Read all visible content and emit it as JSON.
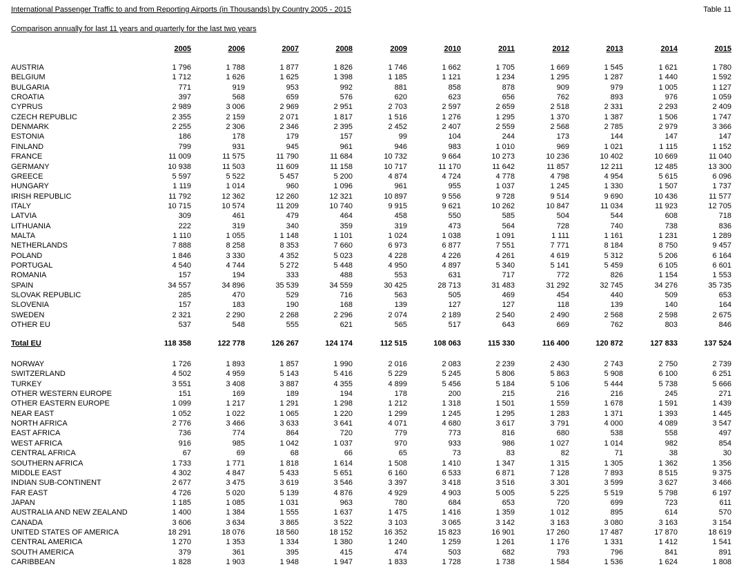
{
  "header": {
    "title": "International Passenger Traffic to and from Reporting Airports (in Thousands) by Country 2005 - 2015",
    "table_id": "Table 11",
    "subtitle": "Comparison annually for last 11 years and quarterly for the last two years"
  },
  "years": [
    "2005",
    "2006",
    "2007",
    "2008",
    "2009",
    "2010",
    "2011",
    "2012",
    "2013",
    "2014",
    "2015"
  ],
  "eu_rows": [
    {
      "name": "AUSTRIA",
      "values": [
        "1 796",
        "1 788",
        "1 877",
        "1 826",
        "1 746",
        "1 662",
        "1 705",
        "1 669",
        "1 545",
        "1 621",
        "1 780"
      ]
    },
    {
      "name": "BELGIUM",
      "values": [
        "1 712",
        "1 626",
        "1 625",
        "1 398",
        "1 185",
        "1 121",
        "1 234",
        "1 295",
        "1 287",
        "1 440",
        "1 592"
      ]
    },
    {
      "name": "BULGARIA",
      "values": [
        "771",
        "919",
        "953",
        "992",
        "881",
        "858",
        "878",
        "909",
        "979",
        "1 005",
        "1 127"
      ]
    },
    {
      "name": "CROATIA",
      "values": [
        "397",
        "568",
        "659",
        "576",
        "620",
        "623",
        "656",
        "762",
        "893",
        "976",
        "1 059"
      ]
    },
    {
      "name": "CYPRUS",
      "values": [
        "2 989",
        "3 006",
        "2 969",
        "2 951",
        "2 703",
        "2 597",
        "2 659",
        "2 518",
        "2 331",
        "2 293",
        "2 409"
      ]
    },
    {
      "name": "CZECH REPUBLIC",
      "values": [
        "2 355",
        "2 159",
        "2 071",
        "1 817",
        "1 516",
        "1 276",
        "1 295",
        "1 370",
        "1 387",
        "1 506",
        "1 747"
      ]
    },
    {
      "name": "DENMARK",
      "values": [
        "2 255",
        "2 306",
        "2 346",
        "2 395",
        "2 452",
        "2 407",
        "2 559",
        "2 568",
        "2 785",
        "2 979",
        "3 366"
      ]
    },
    {
      "name": "ESTONIA",
      "values": [
        "186",
        "178",
        "179",
        "157",
        "99",
        "104",
        "244",
        "173",
        "144",
        "147",
        "147"
      ]
    },
    {
      "name": "FINLAND",
      "values": [
        "799",
        "931",
        "945",
        "961",
        "946",
        "983",
        "1 010",
        "969",
        "1 021",
        "1 115",
        "1 152"
      ]
    },
    {
      "name": "FRANCE",
      "values": [
        "11 009",
        "11 575",
        "11 790",
        "11 684",
        "10 732",
        "9 664",
        "10 273",
        "10 236",
        "10 402",
        "10 669",
        "11 040"
      ]
    },
    {
      "name": "GERMANY",
      "values": [
        "10 938",
        "11 503",
        "11 609",
        "11 158",
        "10 717",
        "11 170",
        "11 642",
        "11 857",
        "12 211",
        "12 485",
        "13 300"
      ]
    },
    {
      "name": "GREECE",
      "values": [
        "5 597",
        "5 522",
        "5 457",
        "5 200",
        "4 874",
        "4 724",
        "4 778",
        "4 798",
        "4 954",
        "5 615",
        "6 096"
      ]
    },
    {
      "name": "HUNGARY",
      "values": [
        "1 119",
        "1 014",
        "960",
        "1 096",
        "961",
        "955",
        "1 037",
        "1 245",
        "1 330",
        "1 507",
        "1 737"
      ]
    },
    {
      "name": "IRISH REPUBLIC",
      "values": [
        "11 792",
        "12 362",
        "12 260",
        "12 321",
        "10 897",
        "9 556",
        "9 728",
        "9 514",
        "9 690",
        "10 436",
        "11 577"
      ]
    },
    {
      "name": "ITALY",
      "values": [
        "10 715",
        "10 574",
        "11 209",
        "10 740",
        "9 915",
        "9 621",
        "10 262",
        "10 847",
        "11 034",
        "11 923",
        "12 705"
      ]
    },
    {
      "name": "LATVIA",
      "values": [
        "309",
        "461",
        "479",
        "464",
        "458",
        "550",
        "585",
        "504",
        "544",
        "608",
        "718"
      ]
    },
    {
      "name": "LITHUANIA",
      "values": [
        "222",
        "319",
        "340",
        "359",
        "319",
        "473",
        "564",
        "728",
        "740",
        "738",
        "836"
      ]
    },
    {
      "name": "MALTA",
      "values": [
        "1 110",
        "1 055",
        "1 148",
        "1 101",
        "1 024",
        "1 038",
        "1 091",
        "1 111",
        "1 161",
        "1 231",
        "1 289"
      ]
    },
    {
      "name": "NETHERLANDS",
      "values": [
        "7 888",
        "8 258",
        "8 353",
        "7 660",
        "6 973",
        "6 877",
        "7 551",
        "7 771",
        "8 184",
        "8 750",
        "9 457"
      ]
    },
    {
      "name": "POLAND",
      "values": [
        "1 846",
        "3 330",
        "4 352",
        "5 023",
        "4 228",
        "4 226",
        "4 261",
        "4 619",
        "5 312",
        "5 206",
        "6 164"
      ]
    },
    {
      "name": "PORTUGAL",
      "values": [
        "4 540",
        "4 744",
        "5 272",
        "5 448",
        "4 950",
        "4 897",
        "5 340",
        "5 141",
        "5 459",
        "6 105",
        "6 601"
      ]
    },
    {
      "name": "ROMANIA",
      "values": [
        "157",
        "194",
        "333",
        "488",
        "553",
        "631",
        "717",
        "772",
        "826",
        "1 154",
        "1 553"
      ]
    },
    {
      "name": "SPAIN",
      "values": [
        "34 557",
        "34 896",
        "35 539",
        "34 559",
        "30 425",
        "28 713",
        "31 483",
        "31 292",
        "32 745",
        "34 276",
        "35 735"
      ]
    },
    {
      "name": "SLOVAK REPUBLIC",
      "values": [
        "285",
        "470",
        "529",
        "716",
        "563",
        "505",
        "469",
        "454",
        "440",
        "509",
        "653"
      ]
    },
    {
      "name": "SLOVENIA",
      "values": [
        "157",
        "183",
        "190",
        "168",
        "139",
        "127",
        "127",
        "118",
        "139",
        "140",
        "164"
      ]
    },
    {
      "name": "SWEDEN",
      "values": [
        "2 321",
        "2 290",
        "2 268",
        "2 296",
        "2 074",
        "2 189",
        "2 540",
        "2 490",
        "2 568",
        "2 598",
        "2 675"
      ]
    },
    {
      "name": "OTHER EU",
      "values": [
        "537",
        "548",
        "555",
        "621",
        "565",
        "517",
        "643",
        "669",
        "762",
        "803",
        "846"
      ]
    }
  ],
  "total_eu": {
    "name": "Total EU",
    "values": [
      "118 358",
      "122 778",
      "126 267",
      "124 174",
      "112 515",
      "108 063",
      "115 330",
      "116 400",
      "120 872",
      "127 833",
      "137 524"
    ]
  },
  "other_rows": [
    {
      "name": "NORWAY",
      "values": [
        "1 726",
        "1 893",
        "1 857",
        "1 990",
        "2 016",
        "2 083",
        "2 239",
        "2 430",
        "2 743",
        "2 750",
        "2 739"
      ]
    },
    {
      "name": "SWITZERLAND",
      "values": [
        "4 502",
        "4 959",
        "5 143",
        "5 416",
        "5 229",
        "5 245",
        "5 806",
        "5 863",
        "5 908",
        "6 100",
        "6 251"
      ]
    },
    {
      "name": "TURKEY",
      "values": [
        "3 551",
        "3 408",
        "3 887",
        "4 355",
        "4 899",
        "5 456",
        "5 184",
        "5 106",
        "5 444",
        "5 738",
        "5 666"
      ]
    },
    {
      "name": "OTHER WESTERN EUROPE",
      "values": [
        "151",
        "169",
        "189",
        "194",
        "178",
        "200",
        "215",
        "216",
        "216",
        "245",
        "271"
      ]
    },
    {
      "name": "OTHER EASTERN EUROPE",
      "values": [
        "1 099",
        "1 217",
        "1 291",
        "1 298",
        "1 212",
        "1 318",
        "1 501",
        "1 559",
        "1 678",
        "1 591",
        "1 439"
      ]
    },
    {
      "name": "NEAR EAST",
      "values": [
        "1 052",
        "1 022",
        "1 065",
        "1 220",
        "1 299",
        "1 245",
        "1 295",
        "1 283",
        "1 371",
        "1 393",
        "1 445"
      ]
    },
    {
      "name": "NORTH AFRICA",
      "values": [
        "2 776",
        "3 466",
        "3 633",
        "3 641",
        "4 071",
        "4 680",
        "3 617",
        "3 791",
        "4 000",
        "4 089",
        "3 547"
      ]
    },
    {
      "name": "EAST AFRICA",
      "values": [
        "736",
        "774",
        "864",
        "720",
        "779",
        "773",
        "816",
        "680",
        "538",
        "558",
        "497"
      ]
    },
    {
      "name": "WEST AFRICA",
      "values": [
        "916",
        "985",
        "1 042",
        "1 037",
        "970",
        "933",
        "986",
        "1 027",
        "1 014",
        "982",
        "854"
      ]
    },
    {
      "name": "CENTRAL AFRICA",
      "values": [
        "67",
        "69",
        "68",
        "66",
        "65",
        "73",
        "83",
        "82",
        "71",
        "38",
        "30"
      ]
    },
    {
      "name": "SOUTHERN AFRICA",
      "values": [
        "1 733",
        "1 771",
        "1 818",
        "1 614",
        "1 508",
        "1 410",
        "1 347",
        "1 315",
        "1 305",
        "1 362",
        "1 356"
      ]
    },
    {
      "name": "MIDDLE EAST",
      "values": [
        "4 302",
        "4 847",
        "5 433",
        "5 651",
        "6 160",
        "6 533",
        "6 871",
        "7 128",
        "7 893",
        "8 515",
        "9 375"
      ]
    },
    {
      "name": "INDIAN SUB-CONTINENT",
      "values": [
        "2 677",
        "3 475",
        "3 619",
        "3 546",
        "3 397",
        "3 418",
        "3 516",
        "3 301",
        "3 599",
        "3 627",
        "3 466"
      ]
    },
    {
      "name": "FAR EAST",
      "values": [
        "4 726",
        "5 020",
        "5 139",
        "4 876",
        "4 929",
        "4 903",
        "5 005",
        "5 225",
        "5 519",
        "5 798",
        "6 197"
      ]
    },
    {
      "name": "JAPAN",
      "values": [
        "1 185",
        "1 085",
        "1 031",
        "963",
        "780",
        "684",
        "653",
        "720",
        "699",
        "723",
        "611"
      ]
    },
    {
      "name": "AUSTRALIA AND NEW ZEALAND",
      "values": [
        "1 400",
        "1 384",
        "1 555",
        "1 637",
        "1 475",
        "1 416",
        "1 359",
        "1 012",
        "895",
        "614",
        "570"
      ]
    },
    {
      "name": "CANADA",
      "values": [
        "3 606",
        "3 634",
        "3 865",
        "3 522",
        "3 103",
        "3 065",
        "3 142",
        "3 163",
        "3 080",
        "3 163",
        "3 154"
      ]
    },
    {
      "name": "UNITED STATES OF AMERICA",
      "values": [
        "18 291",
        "18 076",
        "18 560",
        "18 152",
        "16 352",
        "15 823",
        "16 901",
        "17 260",
        "17 487",
        "17 870",
        "18 619"
      ]
    },
    {
      "name": "CENTRAL AMERICA",
      "values": [
        "1 270",
        "1 353",
        "1 334",
        "1 380",
        "1 240",
        "1 259",
        "1 261",
        "1 176",
        "1 331",
        "1 412",
        "1 541"
      ]
    },
    {
      "name": "SOUTH AMERICA",
      "values": [
        "379",
        "361",
        "395",
        "415",
        "474",
        "503",
        "682",
        "793",
        "796",
        "841",
        "891"
      ]
    },
    {
      "name": "CARIBBEAN",
      "values": [
        "1 828",
        "1 903",
        "1 948",
        "1 947",
        "1 833",
        "1 728",
        "1 738",
        "1 584",
        "1 536",
        "1 624",
        "1 808"
      ]
    }
  ]
}
